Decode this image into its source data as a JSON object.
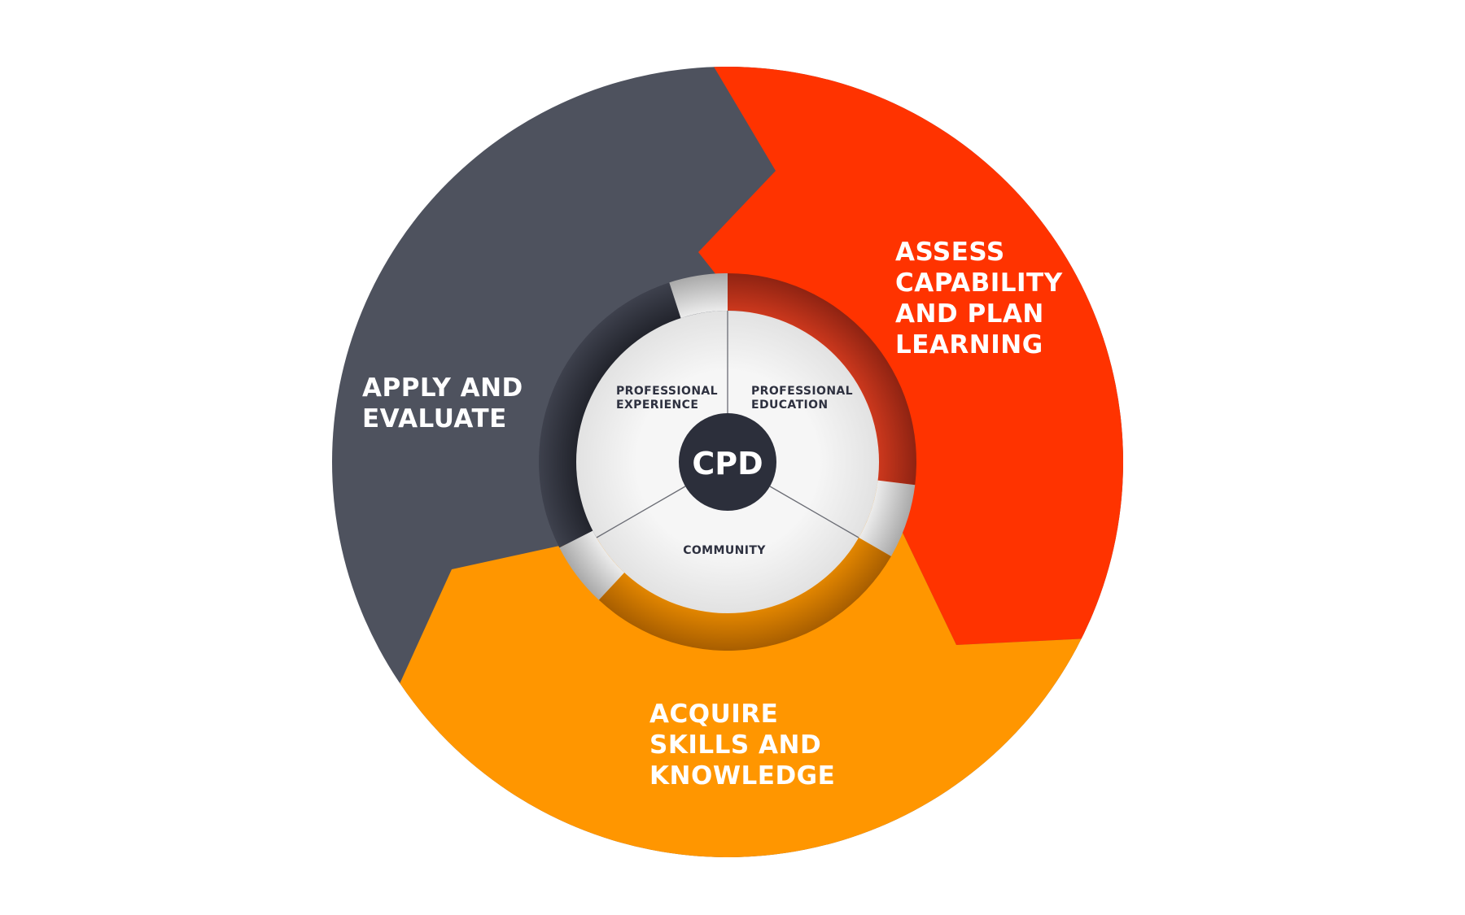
{
  "colors": {
    "background": "#ffffff",
    "apply": "#4e525e",
    "assess": "#ff3300",
    "acquire": "#ff9600",
    "ring_dark": "#343742",
    "ring_red": "#b52d16",
    "ring_orange": "#d77c00",
    "ring_grey": "#d6d6d6",
    "center_disc": "#f2f2f2",
    "hub": "#2c2f3b",
    "hub_text": "#ffffff",
    "inner_text": "#2e3140",
    "divider": "#6b6d75"
  },
  "segments": {
    "apply": {
      "lines": [
        "APPLY AND",
        "EVALUATE"
      ]
    },
    "assess": {
      "lines": [
        "ASSESS",
        "CAPABILITY",
        "AND PLAN",
        "LEARNING"
      ]
    },
    "acquire": {
      "lines": [
        "ACQUIRE",
        "SKILLS AND",
        "KNOWLEDGE"
      ]
    }
  },
  "inner": {
    "experience": {
      "lines": [
        "PROFESSIONAL",
        "EXPERIENCE"
      ]
    },
    "education": {
      "lines": [
        "PROFESSIONAL",
        "EDUCATION"
      ]
    },
    "community": {
      "lines": [
        "COMMUNITY"
      ]
    }
  },
  "center": {
    "label": "CPD"
  }
}
